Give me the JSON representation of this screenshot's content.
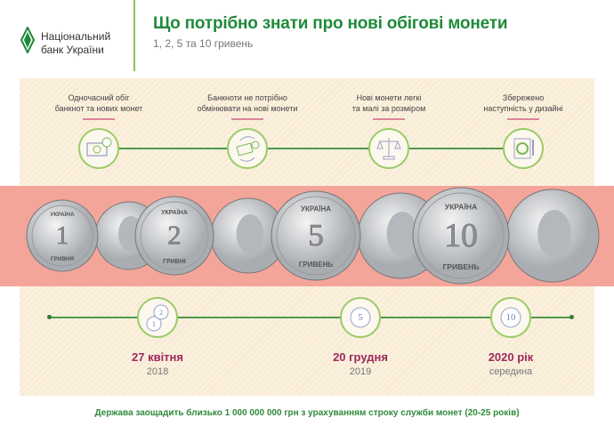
{
  "header": {
    "logo_line1": "Національний",
    "logo_line2": "банк України",
    "title": "Що потрібно знати про нові обігові монети",
    "subtitle": "1, 2, 5 та 10 гривень"
  },
  "features": [
    {
      "line1": "Одночасний обіг",
      "line2": "банкнот та нових монет",
      "icon": "banknote-coin-icon"
    },
    {
      "line1": "Банкноти не потрібно",
      "line2": "обмінювати на нові монети",
      "icon": "exchange-icon"
    },
    {
      "line1": "Нові монети легкі",
      "line2": "та малі за розміром",
      "icon": "scales-icon"
    },
    {
      "line1": "Збережено",
      "line2": "наступність у дизайні",
      "icon": "coin-design-icon"
    }
  ],
  "coins": [
    {
      "value": "1",
      "country": "УКРАЇНА",
      "unit": "ГРИВНЯ"
    },
    {
      "value": "2",
      "country": "УКРАЇНА",
      "unit": "ГРИВНІ"
    },
    {
      "value": "5",
      "country": "УКРАЇНА",
      "unit": "ГРИВЕНЬ"
    },
    {
      "value": "10",
      "country": "УКРАЇНА",
      "unit": "ГРИВЕНЬ"
    }
  ],
  "timeline": [
    {
      "date": "27 квітня",
      "year": "2018",
      "coins": [
        "1",
        "2"
      ]
    },
    {
      "date": "20 грудня",
      "year": "2019",
      "coins": [
        "5"
      ]
    },
    {
      "date": "2020 рік",
      "year": "середина",
      "coins": [
        "10"
      ]
    }
  ],
  "footer": {
    "savings": "Держава заощадить близько 1 000 000 000 грн з урахуванням строку служби монет (20-25 років)"
  },
  "colors": {
    "green": "#1f8a3a",
    "band": "#f4a59a",
    "date": "#9c2a5c",
    "panel": "#fbf1df"
  }
}
